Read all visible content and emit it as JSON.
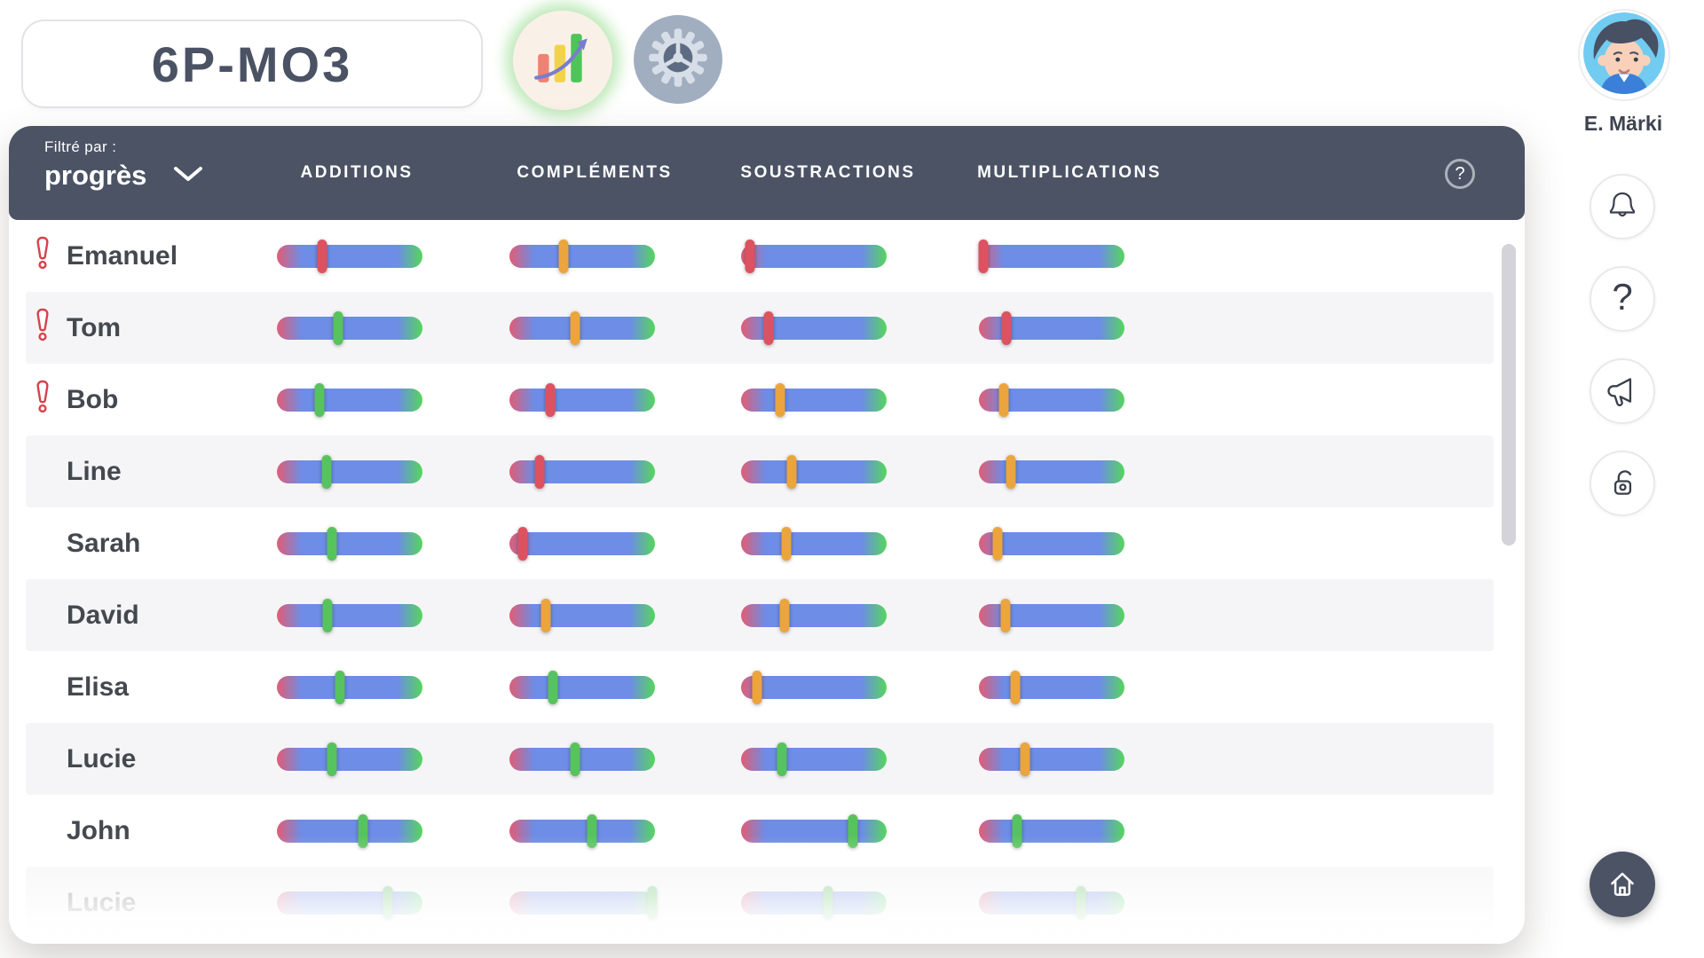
{
  "header": {
    "class_name": "6P-MO3",
    "progress_view_icon": "bar-chart-trend-icon",
    "settings_icon": "gear-icon"
  },
  "profile": {
    "name": "E. Märki",
    "avatar_icon": "boy-avatar"
  },
  "sidebar": {
    "notifications_icon": "bell-icon",
    "help_icon": "question-icon",
    "announcements_icon": "megaphone-icon",
    "lock_icon": "padlock-open-icon",
    "home_icon": "home-icon"
  },
  "table": {
    "filter_label": "Filtré par :",
    "filter_value": "progrès",
    "filter_chevron_icon": "chevron-down-icon",
    "help_icon": "question-circle-icon",
    "columns": [
      "ADDITIONS",
      "COMPLÉMENTS",
      "SOUSTRACTIONS",
      "MULTIPLICATIONS"
    ],
    "column_keys": [
      "additions",
      "complements",
      "soustractions",
      "multiplications"
    ],
    "rows": [
      {
        "name": "Emanuel",
        "alert": true,
        "faded": false,
        "sliders": [
          {
            "value": 31,
            "level": "red"
          },
          {
            "value": 37,
            "level": "orange"
          },
          {
            "value": 6,
            "level": "red"
          },
          {
            "value": 3,
            "level": "red"
          }
        ]
      },
      {
        "name": "Tom",
        "alert": true,
        "faded": false,
        "sliders": [
          {
            "value": 42,
            "level": "green"
          },
          {
            "value": 45,
            "level": "orange"
          },
          {
            "value": 19,
            "level": "red"
          },
          {
            "value": 19,
            "level": "red"
          }
        ]
      },
      {
        "name": "Bob",
        "alert": true,
        "faded": false,
        "sliders": [
          {
            "value": 29,
            "level": "green"
          },
          {
            "value": 28,
            "level": "red"
          },
          {
            "value": 27,
            "level": "orange"
          },
          {
            "value": 17,
            "level": "orange"
          }
        ]
      },
      {
        "name": "Line",
        "alert": false,
        "faded": false,
        "sliders": [
          {
            "value": 34,
            "level": "green"
          },
          {
            "value": 21,
            "level": "red"
          },
          {
            "value": 35,
            "level": "orange"
          },
          {
            "value": 22,
            "level": "orange"
          }
        ]
      },
      {
        "name": "Sarah",
        "alert": false,
        "faded": false,
        "sliders": [
          {
            "value": 38,
            "level": "green"
          },
          {
            "value": 9,
            "level": "red"
          },
          {
            "value": 31,
            "level": "orange"
          },
          {
            "value": 13,
            "level": "orange"
          }
        ]
      },
      {
        "name": "David",
        "alert": false,
        "faded": false,
        "sliders": [
          {
            "value": 35,
            "level": "green"
          },
          {
            "value": 25,
            "level": "orange"
          },
          {
            "value": 30,
            "level": "orange"
          },
          {
            "value": 18,
            "level": "orange"
          }
        ]
      },
      {
        "name": "Elisa",
        "alert": false,
        "faded": false,
        "sliders": [
          {
            "value": 43,
            "level": "green"
          },
          {
            "value": 30,
            "level": "green"
          },
          {
            "value": 11,
            "level": "orange"
          },
          {
            "value": 25,
            "level": "orange"
          }
        ]
      },
      {
        "name": "Lucie",
        "alert": false,
        "faded": false,
        "sliders": [
          {
            "value": 38,
            "level": "green"
          },
          {
            "value": 45,
            "level": "green"
          },
          {
            "value": 28,
            "level": "green"
          },
          {
            "value": 32,
            "level": "orange"
          }
        ]
      },
      {
        "name": "John",
        "alert": false,
        "faded": false,
        "sliders": [
          {
            "value": 59,
            "level": "green"
          },
          {
            "value": 57,
            "level": "green"
          },
          {
            "value": 77,
            "level": "green"
          },
          {
            "value": 26,
            "level": "green"
          }
        ]
      },
      {
        "name": "Lucie",
        "alert": false,
        "faded": true,
        "sliders": [
          {
            "value": 76,
            "level": "green"
          },
          {
            "value": 98,
            "level": "green"
          },
          {
            "value": 60,
            "level": "green"
          },
          {
            "value": 70,
            "level": "green"
          }
        ]
      }
    ]
  },
  "colors": {
    "header_bar": "#4b5365",
    "thumb_red": "#dd5260",
    "thumb_orange": "#eca43c",
    "thumb_green": "#57c35e",
    "track_red": "#e25c74",
    "track_blue": "#6d8de6",
    "track_green": "#55d65c",
    "alert": "#d8414b",
    "stripe": "#f5f5f7"
  }
}
